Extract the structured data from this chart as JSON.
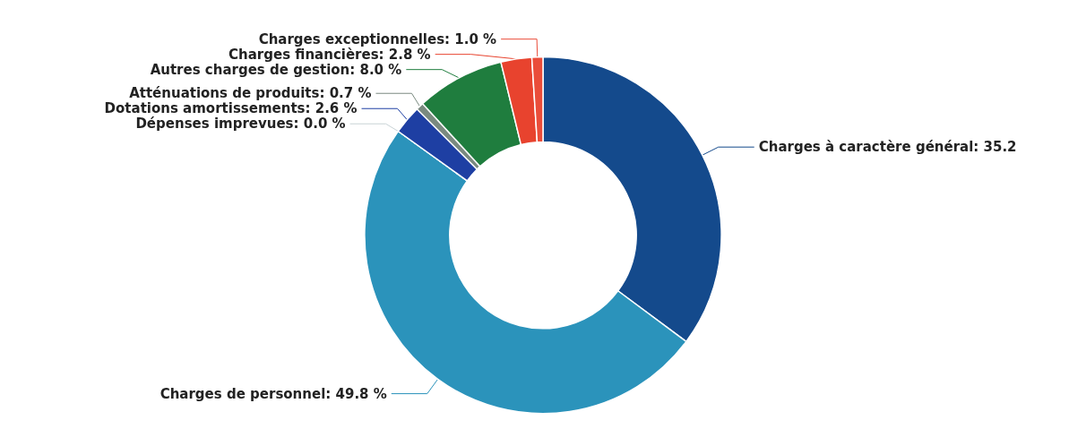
{
  "chart_data": {
    "type": "donut",
    "categories": [
      "Charges à caractère général",
      "Charges de personnel",
      "Dépenses imprevues",
      "Dotations amortissements",
      "Atténuations de produits",
      "Autres charges de gestion",
      "Charges financières",
      "Charges exceptionnelles"
    ],
    "values": [
      35.2,
      49.8,
      0.0,
      2.6,
      0.7,
      8.0,
      2.8,
      1.0
    ],
    "colors": [
      "#144a8c",
      "#2b93bb",
      "#c9d3d6",
      "#1e3fa3",
      "#7a8a80",
      "#1f7d3e",
      "#e8432e",
      "#ea4d3a"
    ],
    "value_labels": [
      "35.2",
      "49.8 %",
      "0.0 %",
      "2.6 %",
      "0.7 %",
      "8.0 %",
      "2.8 %",
      "1.0 %"
    ]
  }
}
